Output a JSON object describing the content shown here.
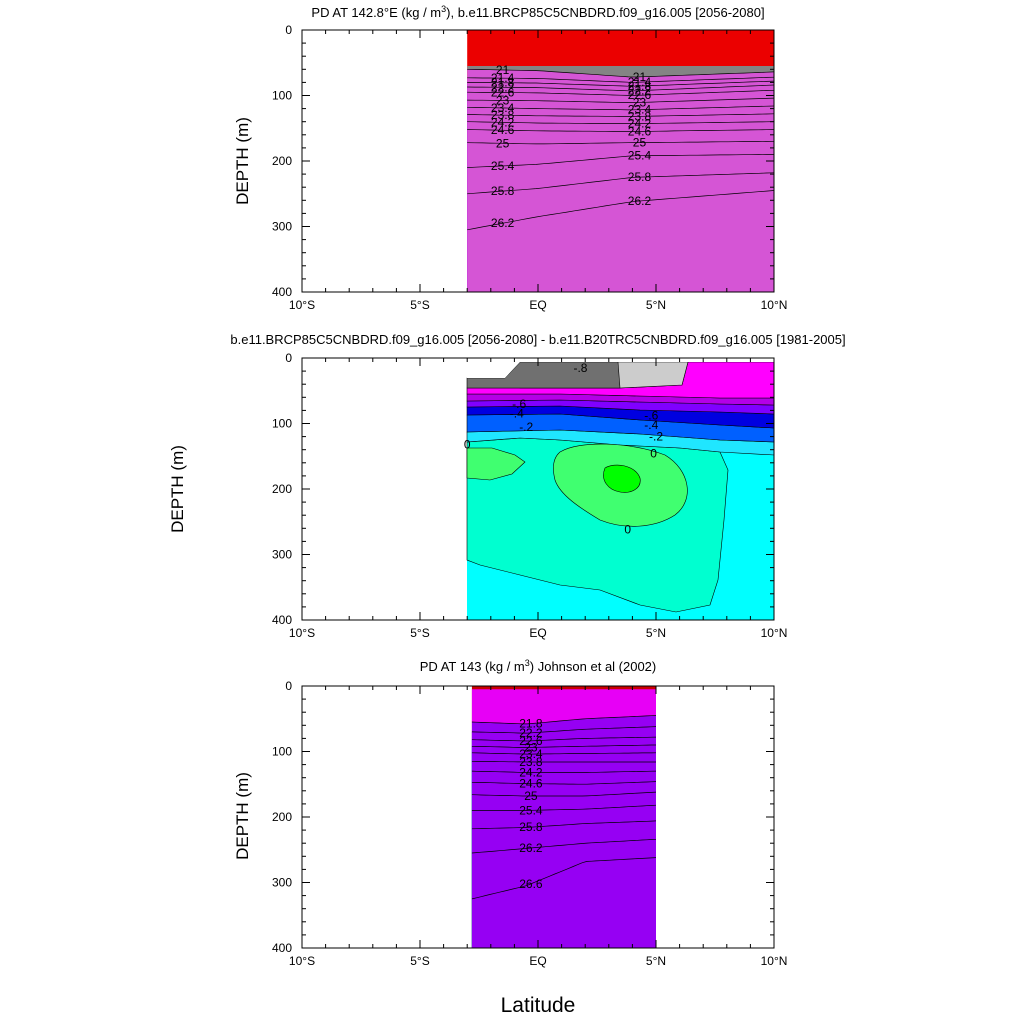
{
  "xlabel": "Latitude",
  "chart_data": [
    {
      "type": "heatmap",
      "title": "PD AT 142.8°E (kg / m³), b.e11.BRCP85C5CNBDRD.f09_g16.005 [2056-2080]",
      "ylabel": "DEPTH (m)",
      "xlim": [
        -10,
        10
      ],
      "ylim": [
        400,
        0
      ],
      "x_ticks": [
        "10°S",
        "5°S",
        "EQ",
        "5°N",
        "10°N"
      ],
      "y_ticks": [
        "0",
        "100",
        "200",
        "300",
        "400"
      ],
      "data_extent": {
        "lat": [
          -3,
          10
        ],
        "depth_top": 55
      },
      "isopycnals": [
        {
          "value": 21,
          "depth_at": [
            [
              -3,
              60
            ],
            [
              0,
              62
            ],
            [
              4,
              72
            ],
            [
              10,
              64
            ]
          ],
          "labels": [
            "21",
            "21"
          ]
        },
        {
          "value": 21.4,
          "depth_at": [
            [
              -3,
              73
            ],
            [
              0,
              74
            ],
            [
              4,
              80
            ],
            [
              10,
              72
            ]
          ],
          "labels": [
            "21.4",
            "21.4"
          ]
        },
        {
          "value": 21.8,
          "depth_at": [
            [
              -3,
              80
            ],
            [
              0,
              81
            ],
            [
              4,
              86
            ],
            [
              10,
              78
            ]
          ],
          "labels": [
            "21.8",
            "21.8"
          ]
        },
        {
          "value": 22.2,
          "depth_at": [
            [
              -3,
              87
            ],
            [
              0,
              88
            ],
            [
              4,
              93
            ],
            [
              10,
              84
            ]
          ],
          "labels": [
            "22.2",
            "22.2"
          ]
        },
        {
          "value": 22.6,
          "depth_at": [
            [
              -3,
              95
            ],
            [
              0,
              96
            ],
            [
              4,
              100
            ],
            [
              10,
              92
            ]
          ],
          "labels": [
            "22.6",
            "22.6"
          ]
        },
        {
          "value": 23,
          "depth_at": [
            [
              -3,
              107
            ],
            [
              0,
              108
            ],
            [
              4,
              111
            ],
            [
              10,
              104
            ]
          ],
          "labels": [
            "23",
            "23"
          ]
        },
        {
          "value": 23.4,
          "depth_at": [
            [
              -3,
              118
            ],
            [
              0,
              120
            ],
            [
              4,
              122
            ],
            [
              10,
              116
            ]
          ],
          "labels": [
            "23.4",
            "23.4"
          ]
        },
        {
          "value": 23.8,
          "depth_at": [
            [
              -3,
              129
            ],
            [
              0,
              131
            ],
            [
              4,
              132
            ],
            [
              10,
              128
            ]
          ],
          "labels": [
            "23.8",
            "23.8"
          ]
        },
        {
          "value": 24.2,
          "depth_at": [
            [
              -3,
              140
            ],
            [
              0,
              142
            ],
            [
              4,
              143
            ],
            [
              10,
              140
            ]
          ],
          "labels": [
            "24.2",
            "24.2"
          ]
        },
        {
          "value": 24.6,
          "depth_at": [
            [
              -3,
              152
            ],
            [
              0,
              154
            ],
            [
              4,
              155
            ],
            [
              10,
              152
            ]
          ],
          "labels": [
            "24.6",
            "24.6"
          ]
        },
        {
          "value": 25,
          "depth_at": [
            [
              -3,
              172
            ],
            [
              0,
              174
            ],
            [
              4,
              172
            ],
            [
              10,
              170
            ]
          ],
          "labels": [
            "25",
            "25"
          ]
        },
        {
          "value": 25.4,
          "depth_at": [
            [
              -3,
              210
            ],
            [
              0,
              205
            ],
            [
              4,
              192
            ],
            [
              10,
              190
            ]
          ],
          "labels": [
            "25.4",
            "25.4"
          ]
        },
        {
          "value": 25.8,
          "depth_at": [
            [
              -3,
              250
            ],
            [
              0,
              242
            ],
            [
              4,
              225
            ],
            [
              10,
              218
            ]
          ],
          "labels": [
            "25.8",
            "25.8"
          ]
        },
        {
          "value": 26.2,
          "depth_at": [
            [
              -3,
              305
            ],
            [
              0,
              285
            ],
            [
              4,
              262
            ],
            [
              10,
              245
            ]
          ],
          "labels": [
            "26.2",
            "26.2"
          ]
        }
      ]
    },
    {
      "type": "heatmap",
      "title": "b.e11.BRCP85C5CNBDRD.f09_g16.005 [2056-2080] - b.e11.B20TRC5CNBDRD.f09_g16.005 [1981-2005]",
      "ylabel": "DEPTH (m)",
      "xlim": [
        -10,
        10
      ],
      "ylim": [
        400,
        0
      ],
      "x_ticks": [
        "10°S",
        "5°S",
        "EQ",
        "5°N",
        "10°N"
      ],
      "y_ticks": [
        "0",
        "100",
        "200",
        "300",
        "400"
      ],
      "data_extent": {
        "lat": [
          -3,
          10
        ],
        "depth_top": 0
      },
      "contour_labels": [
        "-.8",
        "-.6",
        "-.6",
        "-.4",
        "-.4",
        "-.2",
        "-.2",
        "0",
        "0",
        "0"
      ]
    },
    {
      "type": "heatmap",
      "title": "PD AT 143 (kg / m³) Johnson et al (2002)",
      "ylabel": "DEPTH (m)",
      "xlim": [
        -10,
        10
      ],
      "ylim": [
        400,
        0
      ],
      "x_ticks": [
        "10°S",
        "5°S",
        "EQ",
        "5°N",
        "10°N"
      ],
      "y_ticks": [
        "0",
        "100",
        "200",
        "300",
        "400"
      ],
      "data_extent": {
        "lat": [
          -2.8,
          5
        ],
        "depth_top": 5
      },
      "isopycnals": [
        {
          "value": 21.8,
          "depth_at": [
            [
              -2.8,
              55
            ],
            [
              -0.5,
              58
            ],
            [
              2,
              50
            ],
            [
              5,
              45
            ]
          ],
          "labels": [
            "21.8"
          ]
        },
        {
          "value": 22.2,
          "depth_at": [
            [
              -2.8,
              70
            ],
            [
              -0.5,
              72
            ],
            [
              2,
              66
            ],
            [
              5,
              62
            ]
          ],
          "labels": [
            "22.2"
          ]
        },
        {
          "value": 22.6,
          "depth_at": [
            [
              -2.8,
              82
            ],
            [
              -0.5,
              84
            ],
            [
              2,
              80
            ],
            [
              5,
              78
            ]
          ],
          "labels": [
            "22.6"
          ]
        },
        {
          "value": 23,
          "depth_at": [
            [
              -2.8,
              92
            ],
            [
              -0.5,
              94
            ],
            [
              2,
              92
            ],
            [
              5,
              90
            ]
          ],
          "labels": [
            "23"
          ]
        },
        {
          "value": 23.4,
          "depth_at": [
            [
              -2.8,
              102
            ],
            [
              -0.5,
              104
            ],
            [
              2,
              103
            ],
            [
              5,
              102
            ]
          ],
          "labels": [
            "23.4"
          ]
        },
        {
          "value": 23.8,
          "depth_at": [
            [
              -2.8,
              115
            ],
            [
              -0.5,
              116
            ],
            [
              2,
              116
            ],
            [
              5,
              116
            ]
          ],
          "labels": [
            "23.8"
          ]
        },
        {
          "value": 24.2,
          "depth_at": [
            [
              -2.8,
              130
            ],
            [
              -0.5,
              132
            ],
            [
              2,
              132
            ],
            [
              5,
              130
            ]
          ],
          "labels": [
            "24.2"
          ]
        },
        {
          "value": 24.6,
          "depth_at": [
            [
              -2.8,
              147
            ],
            [
              -0.5,
              149
            ],
            [
              2,
              150
            ],
            [
              5,
              146
            ]
          ],
          "labels": [
            "24.6"
          ]
        },
        {
          "value": 25,
          "depth_at": [
            [
              -2.8,
              166
            ],
            [
              -0.5,
              168
            ],
            [
              2,
              168
            ],
            [
              5,
              162
            ]
          ],
          "labels": [
            "25"
          ]
        },
        {
          "value": 25.4,
          "depth_at": [
            [
              -2.8,
              190
            ],
            [
              -0.5,
              190
            ],
            [
              2,
              188
            ],
            [
              5,
              182
            ]
          ],
          "labels": [
            "25.4"
          ]
        },
        {
          "value": 25.8,
          "depth_at": [
            [
              -2.8,
              218
            ],
            [
              -0.5,
              216
            ],
            [
              2,
              210
            ],
            [
              5,
              206
            ]
          ],
          "labels": [
            "25.8"
          ]
        },
        {
          "value": 26.2,
          "depth_at": [
            [
              -2.8,
              255
            ],
            [
              -0.5,
              248
            ],
            [
              2,
              240
            ],
            [
              5,
              234
            ]
          ],
          "labels": [
            "26.2"
          ]
        },
        {
          "value": 26.6,
          "depth_at": [
            [
              -2.8,
              325
            ],
            [
              -0.5,
              305
            ],
            [
              2,
              268
            ],
            [
              5,
              262
            ]
          ],
          "labels": [
            "26.6"
          ]
        }
      ]
    }
  ],
  "colors": {
    "gray_dark": "#707070",
    "gray_light": "#cccccc",
    "magenta": "#ff00ff",
    "purple": "#b400e6",
    "blue": "#0000e0",
    "cyan": "#00e6ff",
    "aqua": "#00ffd0",
    "lime": "#30ff30",
    "yellow": "#ffff00",
    "orange": "#ff9a1a",
    "red": "#ff1a00",
    "darkred": "#cc0000"
  }
}
